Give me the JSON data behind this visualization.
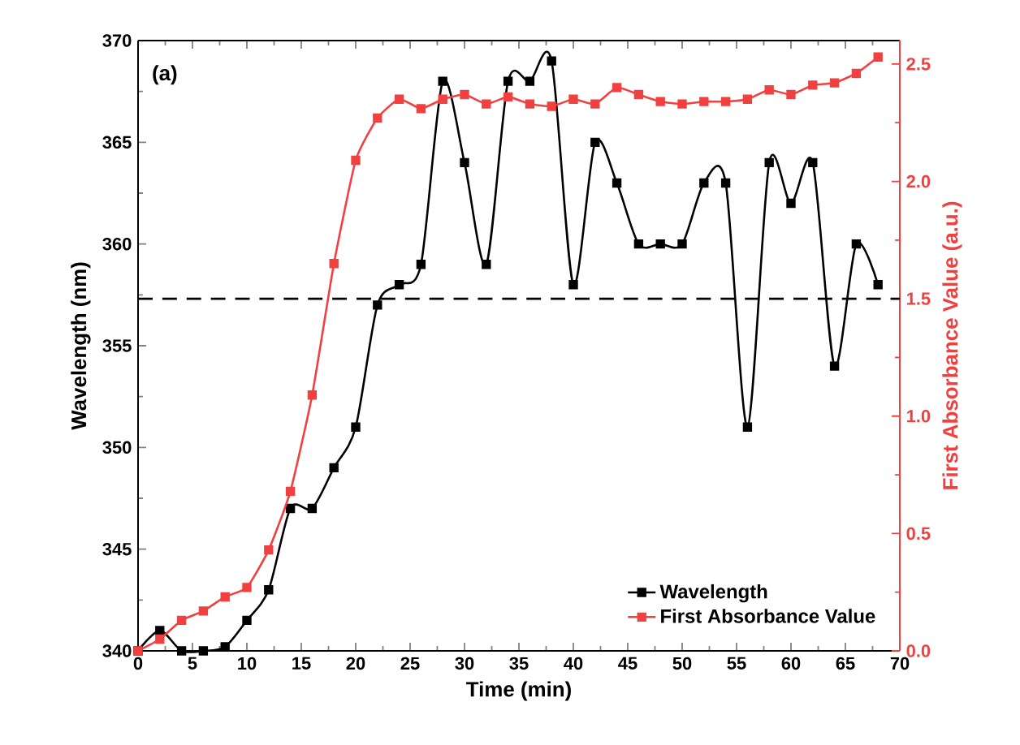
{
  "chart_data": {
    "type": "line",
    "x": [
      0,
      2,
      4,
      6,
      8,
      10,
      12,
      14,
      16,
      18,
      20,
      22,
      24,
      26,
      28,
      30,
      32,
      34,
      36,
      38,
      40,
      42,
      44,
      46,
      48,
      50,
      52,
      54,
      56,
      58,
      60,
      62,
      64,
      66,
      68
    ],
    "series": [
      {
        "name": "Wavelength",
        "color": "#000000",
        "values": [
          340,
          341,
          340,
          340,
          340.2,
          341.5,
          343,
          347,
          347,
          349,
          351,
          357,
          358,
          359,
          368,
          364,
          359,
          368,
          368,
          369,
          358,
          365,
          363,
          360,
          360,
          360,
          363,
          363,
          351,
          364,
          362,
          364,
          354,
          360,
          358
        ]
      },
      {
        "name": "First Absorbance Value",
        "color": "#f04040",
        "axis": "y2",
        "values": [
          0,
          0.05,
          0.13,
          0.17,
          0.23,
          0.27,
          0.43,
          0.68,
          1.09,
          1.65,
          2.09,
          2.27,
          2.35,
          2.31,
          2.35,
          2.37,
          2.33,
          2.36,
          2.33,
          2.32,
          2.35,
          2.33,
          2.4,
          2.37,
          2.34,
          2.33,
          2.34,
          2.34,
          2.35,
          2.39,
          2.37,
          2.41,
          2.42,
          2.46,
          2.53
        ]
      }
    ],
    "xlabel": "Time (min)",
    "ylabel": "Wavelength (nm)",
    "y2label": "First Absorbance Value (a.u.)",
    "xlim": [
      0,
      70
    ],
    "xticks": [
      0,
      5,
      10,
      15,
      20,
      25,
      30,
      35,
      40,
      45,
      50,
      55,
      60,
      65,
      70
    ],
    "ylim": [
      340,
      370
    ],
    "yticks": [
      340,
      345,
      350,
      355,
      360,
      365,
      370
    ],
    "y2lim": [
      0,
      2.6
    ],
    "y2ticks": [
      {
        "value": 0,
        "label": "0.0"
      },
      {
        "value": 0.5,
        "label": "0.5"
      },
      {
        "value": 1,
        "label": "1.0"
      },
      {
        "value": 1.5,
        "label": "1.5"
      },
      {
        "value": 2,
        "label": "2.0"
      },
      {
        "value": 2.5,
        "label": "2.5"
      }
    ],
    "ref_lines": [
      {
        "axis": "y2",
        "value": 1.5,
        "color": "#000000",
        "line_style": "dashed"
      }
    ],
    "annotations": [
      "(a)"
    ],
    "marker": "square",
    "line_style": "solid",
    "legend": "bottom right"
  }
}
